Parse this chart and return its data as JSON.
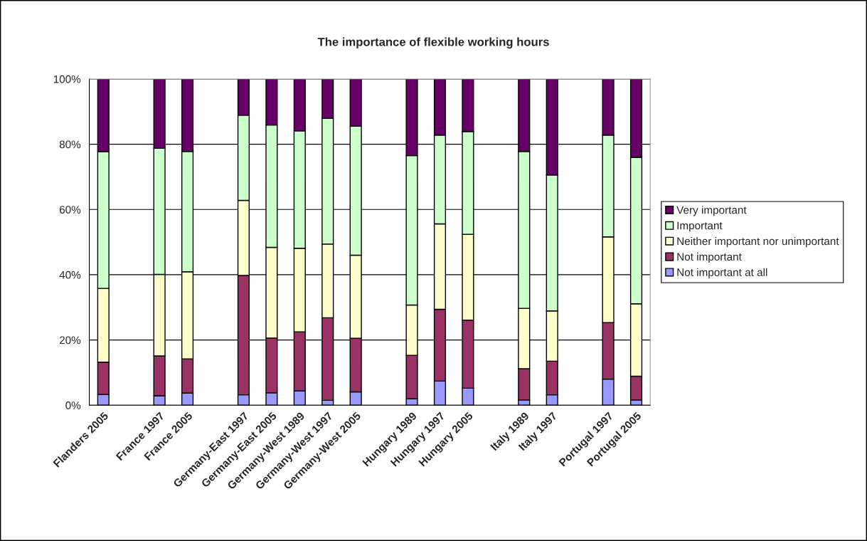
{
  "chart_data": {
    "type": "bar",
    "stacked": true,
    "title": "The importance of flexible working hours",
    "categories": [
      "Flanders 2005",
      null,
      "France 1997",
      "France 2005",
      null,
      "Germany-East 1997",
      "Germany-East 2005",
      "Germany-West 1989",
      "Germany-West 1997",
      "Germany-West 2005",
      null,
      "Hungary 1989",
      "Hungary 1997",
      "Hungary 2005",
      null,
      "Italy 1989",
      "Italy 1997",
      null,
      "Portugal 1997",
      "Portugal 2005"
    ],
    "series": [
      {
        "name": "Not important at all",
        "color": "#9999ff",
        "values": [
          3.3,
          null,
          2.9,
          3.7,
          null,
          3.2,
          3.8,
          4.4,
          1.5,
          4.1,
          null,
          2.0,
          7.4,
          5.2,
          null,
          1.6,
          3.2,
          null,
          8.0,
          1.6
        ]
      },
      {
        "name": "Not important",
        "color": "#993366",
        "values": [
          9.9,
          null,
          12.2,
          10.5,
          null,
          36.6,
          16.8,
          18.1,
          25.3,
          16.4,
          null,
          13.3,
          22.0,
          20.9,
          null,
          9.6,
          10.3,
          null,
          17.3,
          7.3
        ]
      },
      {
        "name": "Neither important nor unimportant",
        "color": "#ffffcc",
        "values": [
          22.6,
          null,
          25.0,
          26.7,
          null,
          23.0,
          27.8,
          25.6,
          22.6,
          25.5,
          null,
          15.4,
          26.2,
          26.3,
          null,
          18.5,
          15.4,
          null,
          26.3,
          22.2
        ]
      },
      {
        "name": "Important",
        "color": "#ccffcc",
        "values": [
          41.9,
          null,
          38.7,
          36.9,
          null,
          26.1,
          37.5,
          36.0,
          38.5,
          39.5,
          null,
          45.8,
          27.2,
          31.5,
          null,
          48.1,
          41.7,
          null,
          31.2,
          44.9
        ]
      },
      {
        "name": "Very important",
        "color": "#660066",
        "values": [
          22.3,
          null,
          21.2,
          22.2,
          null,
          11.1,
          14.1,
          15.9,
          12.1,
          14.5,
          null,
          23.5,
          17.2,
          16.1,
          null,
          22.2,
          29.4,
          null,
          17.2,
          24.0
        ]
      }
    ],
    "ylim": [
      0,
      100
    ],
    "yticks": [
      {
        "value": 0,
        "label": "0%"
      },
      {
        "value": 20,
        "label": "20%"
      },
      {
        "value": 40,
        "label": "40%"
      },
      {
        "value": 60,
        "label": "60%"
      },
      {
        "value": 80,
        "label": "80%"
      },
      {
        "value": 100,
        "label": "100%"
      }
    ],
    "grid": "y",
    "legend": "right"
  }
}
